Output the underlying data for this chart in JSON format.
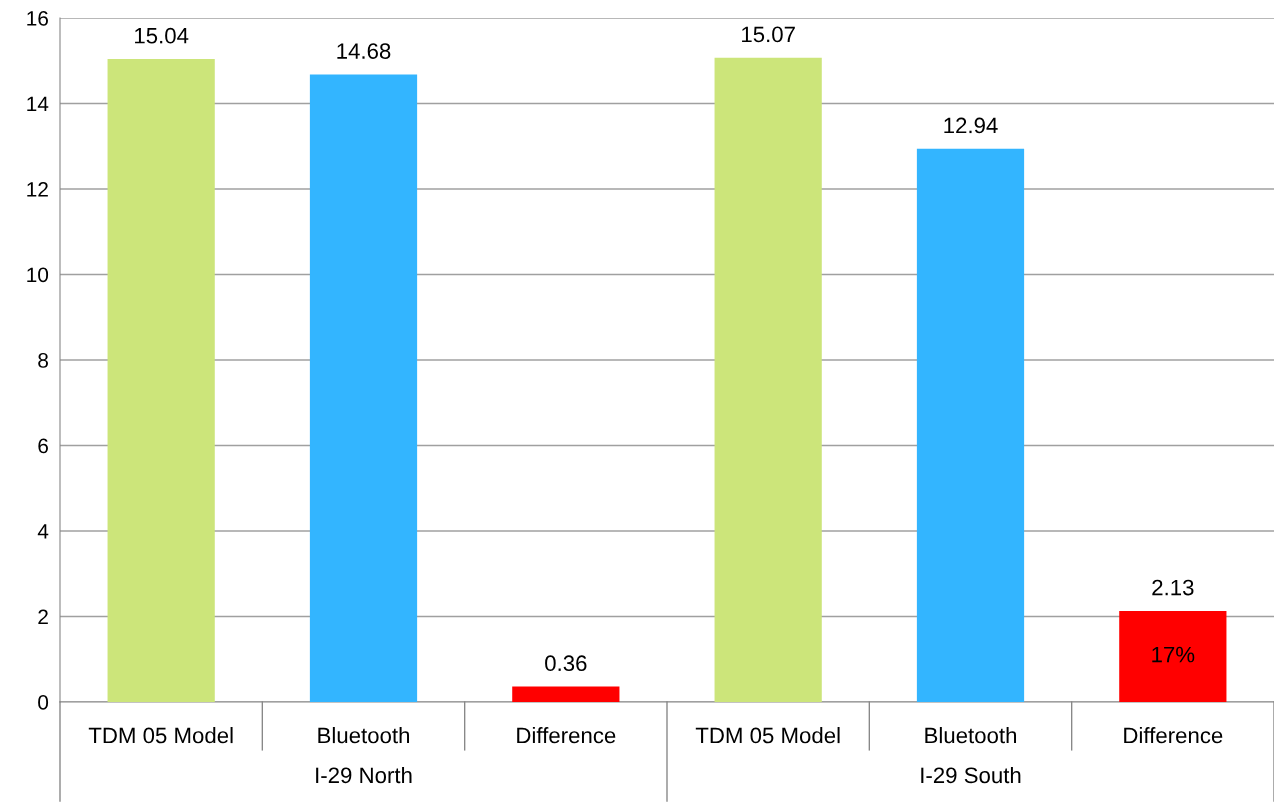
{
  "chart_data": {
    "type": "bar",
    "categories": [
      "TDM 05 Model",
      "Bluetooth",
      "Difference",
      "TDM 05 Model",
      "Bluetooth",
      "Difference"
    ],
    "values": [
      15.04,
      14.68,
      0.36,
      15.07,
      12.94,
      2.13
    ],
    "colors": [
      "#cce57a",
      "#33b5ff",
      "#ff0000",
      "#cce57a",
      "#33b5ff",
      "#ff0000"
    ],
    "ylim": [
      0,
      16
    ],
    "yticks": [
      0,
      2,
      4,
      6,
      8,
      10,
      12,
      14,
      16
    ],
    "grid": "y",
    "data_labels": true,
    "annotations": [
      "I-29 North",
      "I-29 South",
      "17%"
    ]
  }
}
